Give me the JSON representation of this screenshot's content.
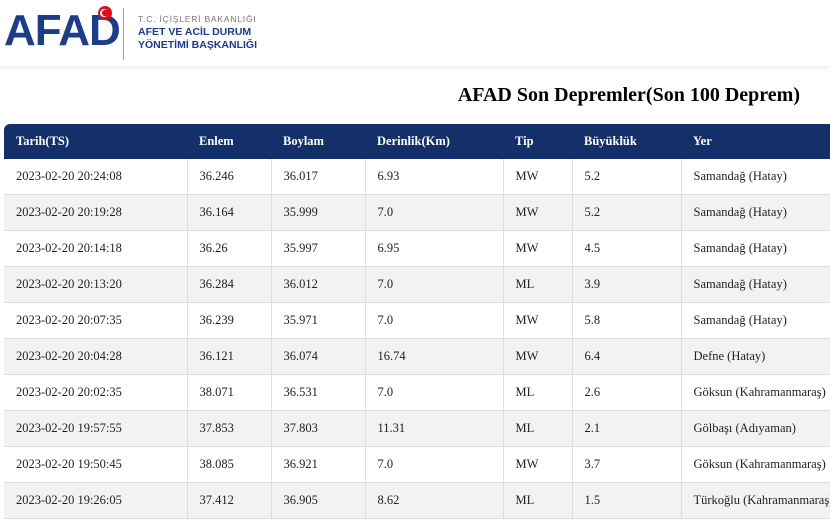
{
  "header": {
    "logo": "AFAD",
    "ministry": "T.C. İÇİŞLERİ BAKANLIĞI",
    "agency_line1": "AFET VE ACİL DURUM",
    "agency_line2": "YÖNETİMİ BAŞKANLIĞI"
  },
  "title": "AFAD Son Depremler(Son 100 Deprem)",
  "table": {
    "columns": [
      "Tarih(TS)",
      "Enlem",
      "Boylam",
      "Derinlik(Km)",
      "Tip",
      "Büyüklük",
      "Yer"
    ],
    "rows": [
      [
        "2023-02-20 20:24:08",
        "36.246",
        "36.017",
        "6.93",
        "MW",
        "5.2",
        "Samandağ (Hatay)"
      ],
      [
        "2023-02-20 20:19:28",
        "36.164",
        "35.999",
        "7.0",
        "MW",
        "5.2",
        "Samandağ (Hatay)"
      ],
      [
        "2023-02-20 20:14:18",
        "36.26",
        "35.997",
        "6.95",
        "MW",
        "4.5",
        "Samandağ (Hatay)"
      ],
      [
        "2023-02-20 20:13:20",
        "36.284",
        "36.012",
        "7.0",
        "ML",
        "3.9",
        "Samandağ (Hatay)"
      ],
      [
        "2023-02-20 20:07:35",
        "36.239",
        "35.971",
        "7.0",
        "MW",
        "5.8",
        "Samandağ (Hatay)"
      ],
      [
        "2023-02-20 20:04:28",
        "36.121",
        "36.074",
        "16.74",
        "MW",
        "6.4",
        "Defne (Hatay)"
      ],
      [
        "2023-02-20 20:02:35",
        "38.071",
        "36.531",
        "7.0",
        "ML",
        "2.6",
        "Göksun (Kahramanmaraş)"
      ],
      [
        "2023-02-20 19:57:55",
        "37.853",
        "37.803",
        "11.31",
        "ML",
        "2.1",
        "Gölbaşı (Adıyaman)"
      ],
      [
        "2023-02-20 19:50:45",
        "38.085",
        "36.921",
        "7.0",
        "MW",
        "3.7",
        "Göksun (Kahramanmaraş)"
      ],
      [
        "2023-02-20 19:26:05",
        "37.412",
        "36.905",
        "8.62",
        "ML",
        "1.5",
        "Türkoğlu (Kahramanmaraş)"
      ]
    ]
  }
}
